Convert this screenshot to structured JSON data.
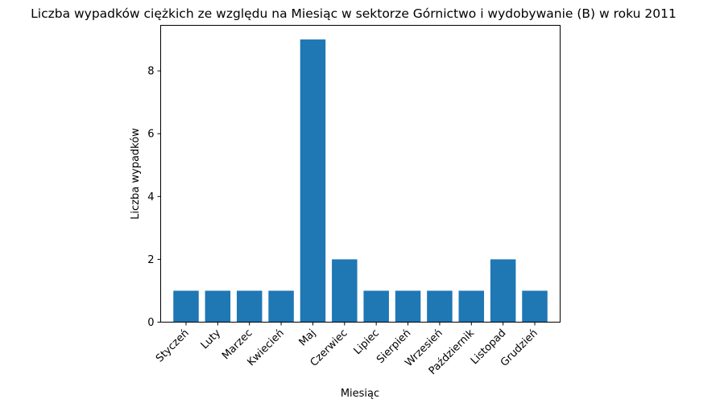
{
  "chart_data": {
    "type": "bar",
    "title": "Liczba wypadków ciężkich ze względu na Miesiąc w sektorze Górnictwo i wydobywanie (B)   w roku 2011",
    "xlabel": "Miesiąc",
    "ylabel": "Liczba wypadków",
    "categories": [
      "Styczeń",
      "Luty",
      "Marzec",
      "Kwiecień",
      "Maj",
      "Czerwiec",
      "Lipiec",
      "Sierpień",
      "Wrzesień",
      "Październik",
      "Listopad",
      "Grudzień"
    ],
    "values": [
      1,
      1,
      1,
      1,
      9,
      2,
      1,
      1,
      1,
      1,
      2,
      1
    ],
    "ylim": [
      0,
      9.45
    ],
    "yticks": [
      0,
      2,
      4,
      6,
      8
    ],
    "grid": false,
    "bar_color": "#1f77b4"
  }
}
